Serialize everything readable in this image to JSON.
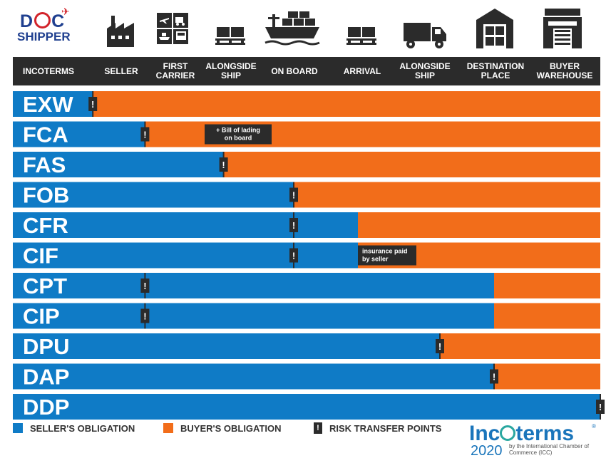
{
  "logo": {
    "line1_a": "D",
    "line1_b": "C",
    "line2": "SHIPPER"
  },
  "header": [
    "INCOTERMS",
    "SELLER",
    "FIRST CARRIER",
    "ALONGSIDE SHIP",
    "ON BOARD",
    "ARRIVAL",
    "ALONGSIDE SHIP",
    "DESTINATION PLACE",
    "BUYER WAREHOUSE"
  ],
  "colors": {
    "seller": "#0f7bc6",
    "buyer": "#f26d1a",
    "header_bg": "#2b2b2b",
    "risk": "#2b2b2b"
  },
  "icons": [
    "factory-icon",
    "transport-modes-icon",
    "pallet-icon",
    "cargo-ship-icon",
    "pallet-icon",
    "truck-icon",
    "warehouse-icon",
    "building-icon"
  ],
  "chart_data": {
    "type": "bar",
    "categories": [
      "EXW",
      "FCA",
      "FAS",
      "FOB",
      "CFR",
      "CIF",
      "CPT",
      "CIP",
      "DPU",
      "DAP",
      "DDP"
    ],
    "stages": [
      "SELLER",
      "FIRST CARRIER",
      "ALONGSIDE SHIP",
      "ON BOARD",
      "ARRIVAL",
      "ALONGSIDE SHIP",
      "DESTINATION PLACE",
      "BUYER WAREHOUSE"
    ],
    "cost_transfer_stage": [
      1.1,
      1.7,
      2.8,
      4.0,
      5.0,
      5.0,
      7.0,
      7.0,
      6.2,
      7.0,
      8.0
    ],
    "risk_transfer_stage": [
      1.1,
      1.7,
      2.8,
      4.0,
      4.0,
      4.0,
      1.7,
      1.7,
      6.2,
      7.0,
      8.0
    ],
    "annotations": [
      {
        "term": "FCA",
        "text": [
          "+ Bill of lading",
          "on board"
        ]
      },
      {
        "term": "CIF",
        "text": [
          "insurance paid",
          "by seller"
        ]
      }
    ],
    "legend": [
      "SELLER'S OBLIGATION",
      "BUYER'S OBLIGATION",
      "RISK TRANSFER POINTS"
    ],
    "risk_glyph": "!"
  },
  "brand": {
    "name_a": "Inc",
    "name_b": "terms",
    "registered": "®",
    "year": "2020",
    "by_line": "by the International Chamber of Commerce (ICC)"
  }
}
